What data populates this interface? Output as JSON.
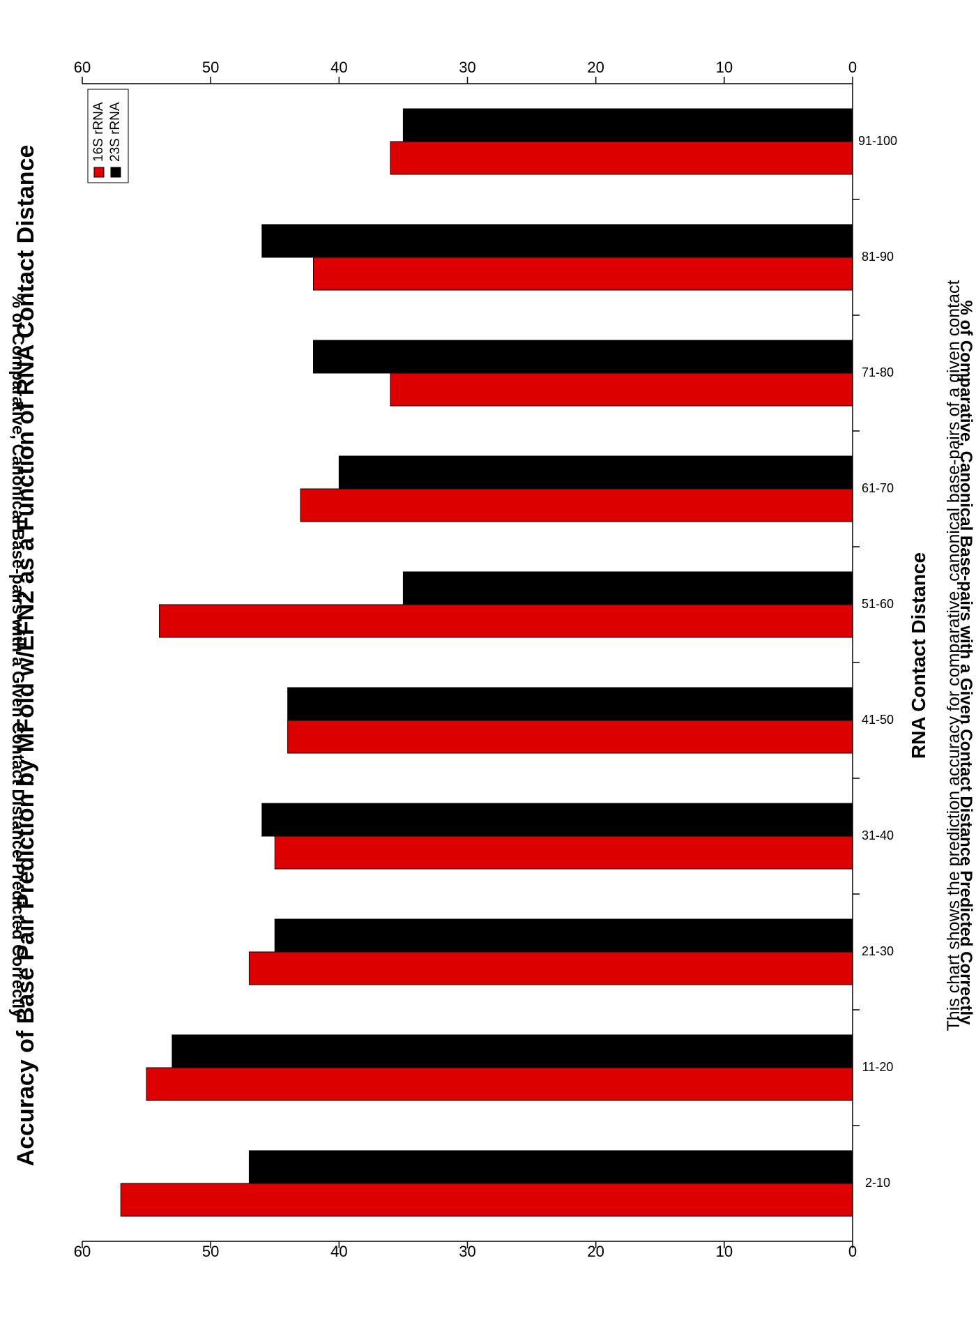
{
  "chart_data": {
    "type": "bar",
    "orientation": "rotated-90",
    "title": "Accuracy of Base Pair Prediction by MFold w/EFN2 as a Function of RNA Contact Distance",
    "xlabel": "RNA Contact Distance",
    "ylabel": "% of Comparative, Canonical Base-pairs with a Given Contact Distance Predicted Correctly",
    "ylabel_secondary": "% of Comparative, Canonical Base-pairs with a Given Contact Distance Predicted Correctly",
    "caption": "This chart shows the prediction accuracy for comparative, canonical base-pairs of a given contact",
    "categories": [
      "2-10",
      "11-20",
      "21-30",
      "31-40",
      "41-50",
      "51-60",
      "61-70",
      "71-80",
      "81-90",
      "91-100"
    ],
    "series": [
      {
        "name": "16S rRNA",
        "color": "#dd0000",
        "values": [
          57,
          55,
          47,
          45,
          44,
          54,
          43,
          36,
          42,
          36
        ]
      },
      {
        "name": "23S rRNA",
        "color": "#000000",
        "values": [
          47,
          53,
          45,
          46,
          44,
          35,
          40,
          42,
          46,
          35
        ]
      }
    ],
    "ylim": [
      0,
      60
    ],
    "yticks": [
      "0",
      "10",
      "20",
      "30",
      "40",
      "50",
      "60"
    ],
    "grid": false,
    "legend": "top-right"
  }
}
